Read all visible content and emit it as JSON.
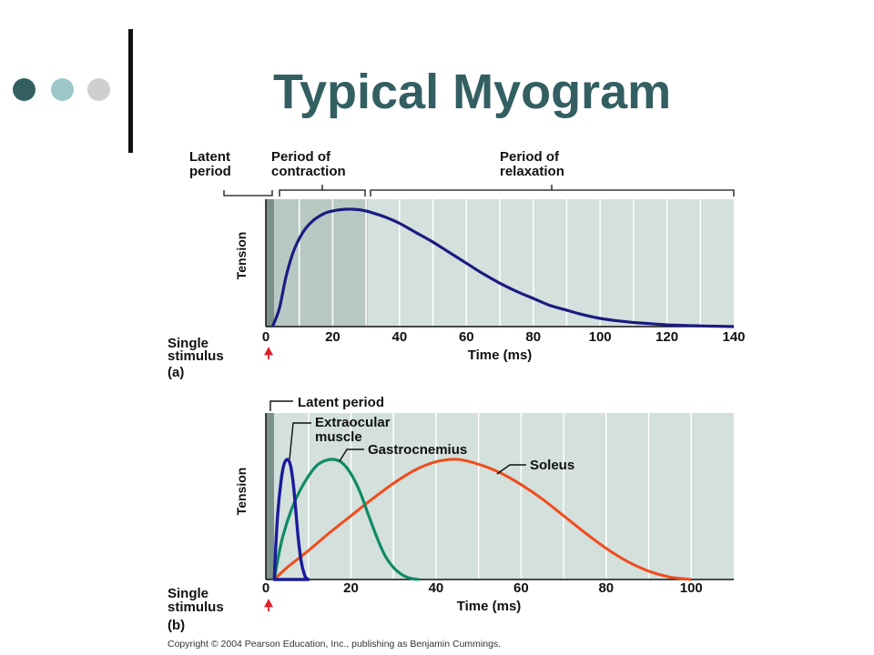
{
  "slide": {
    "title": "Typical Myogram"
  },
  "colors": {
    "title": "#335f62",
    "dot_dark": "#335f62",
    "dot_light": "#9cc8ca",
    "dot_gray": "#cfcfcf",
    "plot_bg": "#d3e0dc",
    "latent_band": "#7c908c",
    "contraction_band": "#b8c8c3",
    "stimulus_arrow": "#e0202a",
    "curve_a": "#1b1b80",
    "extraocular": "#1b1b9a",
    "gastrocnemius": "#0f8a66",
    "soleus": "#f04c1c"
  },
  "chart_data": [
    {
      "type": "line",
      "panel_label": "(a)",
      "xlabel": "Time (ms)",
      "ylabel": "Tension",
      "xlim": [
        0,
        140
      ],
      "ylim": [
        0,
        1
      ],
      "x_tick_labels": [
        "0",
        "20",
        "40",
        "60",
        "80",
        "100",
        "120",
        "140"
      ],
      "stimulus_label_line1": "Single",
      "stimulus_label_line2": "stimulus",
      "phases": [
        {
          "label_line1": "Latent",
          "label_line2": "period",
          "x_start": 0,
          "x_end": 2
        },
        {
          "label_line1": "Period of",
          "label_line2": "contraction",
          "x_start": 2,
          "x_end": 30
        },
        {
          "label_line1": "Period of",
          "label_line2": "relaxation",
          "x_start": 30,
          "x_end": 140
        }
      ],
      "series": [
        {
          "x": [
            2,
            4,
            6,
            8,
            10,
            12,
            14,
            16,
            18,
            20,
            22,
            24,
            26,
            28,
            30,
            33,
            36,
            40,
            45,
            50,
            55,
            60,
            65,
            70,
            75,
            80,
            85,
            90,
            95,
            100,
            105,
            110,
            115,
            120,
            125,
            130,
            135,
            140
          ],
          "y": [
            0.0,
            0.15,
            0.42,
            0.62,
            0.75,
            0.84,
            0.9,
            0.94,
            0.97,
            0.985,
            0.995,
            1.0,
            1.0,
            0.995,
            0.985,
            0.96,
            0.93,
            0.88,
            0.8,
            0.72,
            0.63,
            0.54,
            0.45,
            0.37,
            0.3,
            0.24,
            0.18,
            0.14,
            0.1,
            0.07,
            0.05,
            0.035,
            0.025,
            0.015,
            0.01,
            0.006,
            0.003,
            0.0
          ]
        }
      ]
    },
    {
      "type": "line",
      "panel_label": "(b)",
      "xlabel": "Time (ms)",
      "ylabel": "Tension",
      "xlim": [
        0,
        110
      ],
      "ylim": [
        0,
        1
      ],
      "x_tick_labels": [
        "0",
        "20",
        "40",
        "60",
        "80",
        "100"
      ],
      "stimulus_label_line1": "Single",
      "stimulus_label_line2": "stimulus",
      "latent_period": {
        "label": "Latent period",
        "x_start": 0,
        "x_end": 2
      },
      "series": [
        {
          "name_line1": "Extraocular",
          "name_line2": "muscle",
          "closed": true,
          "x": [
            2,
            2.3,
            2.8,
            3.5,
            4.2,
            5.0,
            5.8,
            6.5,
            7.1,
            7.6,
            8.1,
            8.6,
            9.0,
            9.3,
            9.6,
            10.0
          ],
          "y": [
            0.0,
            0.25,
            0.55,
            0.8,
            0.95,
            1.0,
            0.95,
            0.78,
            0.55,
            0.35,
            0.2,
            0.1,
            0.05,
            0.02,
            0.01,
            0.0
          ]
        },
        {
          "name_line1": "Gastrocnemius",
          "name_line2": "",
          "closed": false,
          "x": [
            2,
            3,
            4,
            6,
            8,
            10,
            12,
            14,
            16,
            18,
            20,
            22,
            24,
            26,
            28,
            30,
            32,
            34,
            36
          ],
          "y": [
            0.0,
            0.2,
            0.36,
            0.58,
            0.74,
            0.86,
            0.95,
            0.99,
            1.0,
            0.97,
            0.88,
            0.74,
            0.55,
            0.36,
            0.2,
            0.1,
            0.04,
            0.01,
            0.0
          ]
        },
        {
          "name_line1": "Soleus",
          "name_line2": "",
          "closed": false,
          "x": [
            2,
            5,
            10,
            15,
            20,
            25,
            30,
            35,
            40,
            45,
            50,
            55,
            60,
            65,
            70,
            75,
            80,
            85,
            90,
            95,
            100
          ],
          "y": [
            0.0,
            0.1,
            0.24,
            0.39,
            0.53,
            0.67,
            0.8,
            0.91,
            0.98,
            1.0,
            0.96,
            0.89,
            0.79,
            0.67,
            0.53,
            0.39,
            0.26,
            0.15,
            0.07,
            0.02,
            0.0
          ]
        }
      ]
    }
  ],
  "copyright": "Copyright © 2004 Pearson Education, Inc., publishing as Benjamin Cummings."
}
